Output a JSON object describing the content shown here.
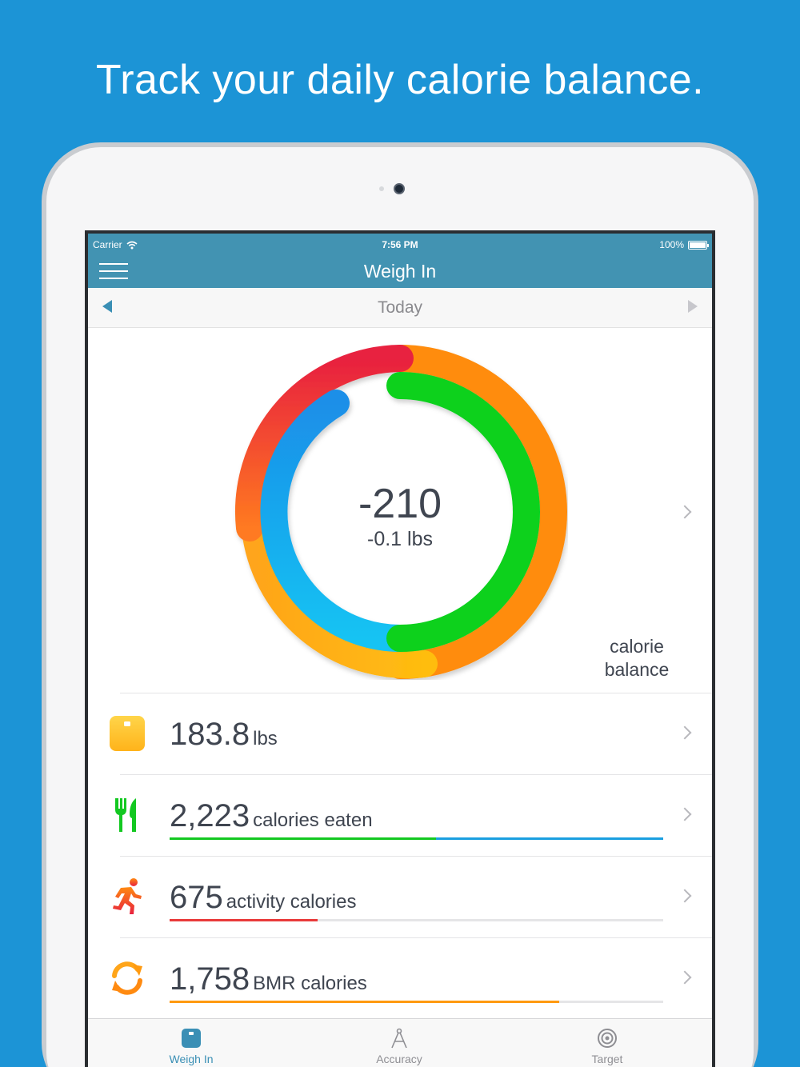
{
  "headline": "Track your daily calorie balance.",
  "status": {
    "carrier": "Carrier",
    "time": "7:56 PM",
    "battery": "100%"
  },
  "nav": {
    "title": "Weigh In"
  },
  "datebar": {
    "label": "Today"
  },
  "balance": {
    "value": "-210",
    "weight_change": "-0.1 lbs",
    "caption": "calorie balance"
  },
  "ring_colors": {
    "outer_start": "#e8203f",
    "outer_mid": "#ff8a0a",
    "outer_end": "#ffbd10",
    "inner_green": "#07d11c",
    "inner_blue": "#13bff1"
  },
  "rows": [
    {
      "value": "183.8",
      "unit": "lbs",
      "icon": "scale-icon"
    },
    {
      "value": "2,223",
      "unit": "calories eaten",
      "icon": "fork-knife-icon",
      "bar": [
        {
          "fraction": 0.54,
          "color": "#13c821"
        },
        {
          "fraction": 0.46,
          "color": "#1a9fe0"
        }
      ]
    },
    {
      "value": "675",
      "unit": "activity calories",
      "icon": "running-person-icon",
      "bar": [
        {
          "fraction": 0.3,
          "color": "#e93a3a"
        }
      ]
    },
    {
      "value": "1,758",
      "unit": "BMR calories",
      "icon": "refresh-icon",
      "bar": [
        {
          "fraction": 0.79,
          "color": "#ff9a10"
        }
      ]
    }
  ],
  "tabs": [
    {
      "label": "Weigh In",
      "icon": "scale-icon",
      "active": true
    },
    {
      "label": "Accuracy",
      "icon": "compass-icon",
      "active": false
    },
    {
      "label": "Target",
      "icon": "target-icon",
      "active": false
    }
  ]
}
